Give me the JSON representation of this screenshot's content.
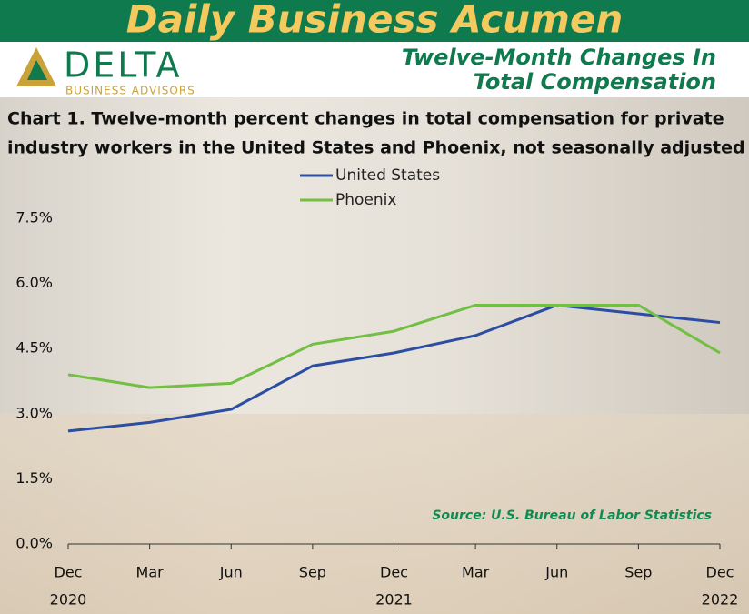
{
  "header": {
    "title": "Daily Business Acumen",
    "logo_name": "DELTA",
    "logo_sub": "BUSINESS ADVISORS",
    "subtitle": [
      "Twelve-Month Changes In",
      "Total Compensation"
    ]
  },
  "chart_data": {
    "type": "line",
    "title": [
      "Chart 1. Twelve-month percent changes in total compensation for private",
      "industry workers in the United States and Phoenix, not seasonally adjusted"
    ],
    "categories": [
      "Dec",
      "Mar",
      "Jun",
      "Sep",
      "Dec",
      "Mar",
      "Jun",
      "Sep",
      "Dec"
    ],
    "year_labels": [
      "2020",
      null,
      null,
      null,
      "2021",
      null,
      null,
      null,
      "2022"
    ],
    "series": [
      {
        "name": "United States",
        "color": "#2b4ea2",
        "values": [
          2.6,
          2.8,
          3.1,
          4.1,
          4.4,
          4.8,
          5.5,
          5.3,
          5.1
        ]
      },
      {
        "name": "Phoenix",
        "color": "#72bf44",
        "values": [
          3.9,
          3.6,
          3.7,
          4.6,
          4.9,
          5.5,
          5.5,
          5.5,
          4.4
        ]
      }
    ],
    "ylim": [
      0,
      7.5
    ],
    "yticks": [
      {
        "value": 0,
        "label": "0.0%"
      },
      {
        "value": 1.5,
        "label": "1.5%"
      },
      {
        "value": 3,
        "label": "3.0%"
      },
      {
        "value": 4.5,
        "label": "4.5%"
      },
      {
        "value": 6,
        "label": "6.0%"
      },
      {
        "value": 7.5,
        "label": "7.5%"
      }
    ],
    "grid": false,
    "legend": "top",
    "source": "Source: U.S. Bureau of Labor Statistics"
  }
}
